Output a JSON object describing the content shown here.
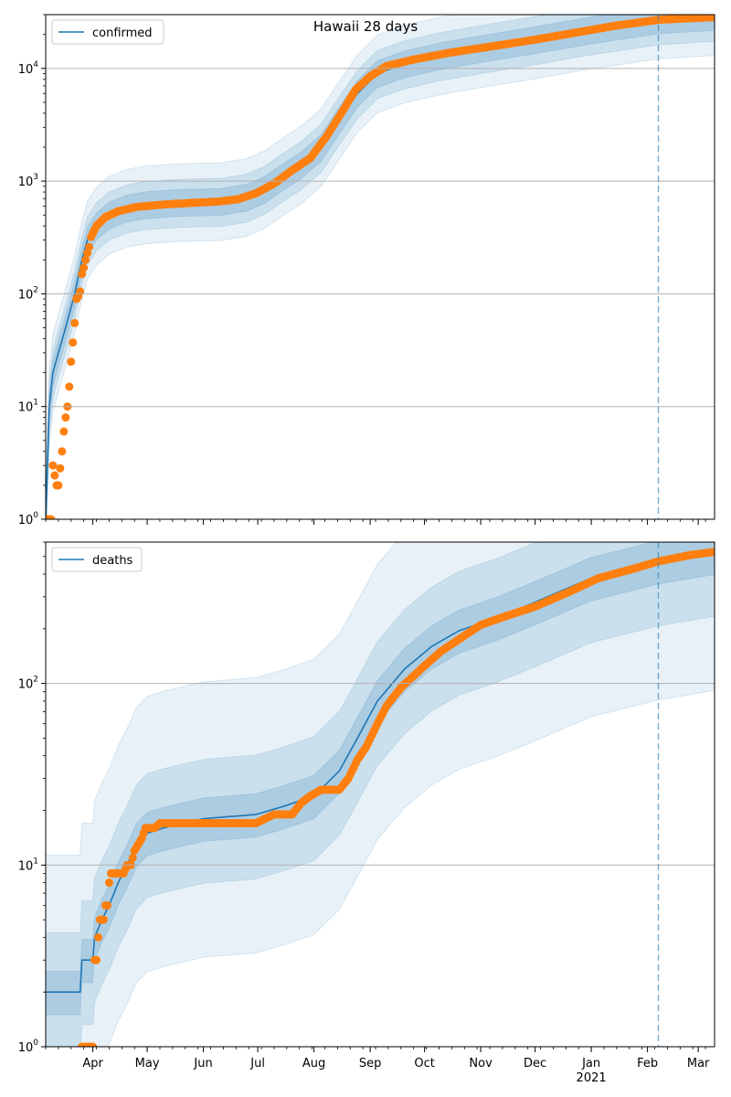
{
  "title": "Hawaii 28 days",
  "chart_data": [
    {
      "type": "line",
      "name": "confirmed-panel",
      "yscale": "log",
      "ylim": [
        1,
        30000
      ],
      "xlim": [
        "2020-03-06",
        "2021-03-10"
      ],
      "y_ticks": [
        {
          "value": 1,
          "base": "10",
          "exp": "0"
        },
        {
          "value": 10,
          "base": "10",
          "exp": "1"
        },
        {
          "value": 100,
          "base": "10",
          "exp": "2"
        },
        {
          "value": 1000,
          "base": "10",
          "exp": "3"
        },
        {
          "value": 10000,
          "base": "10",
          "exp": "4"
        }
      ],
      "grid": "horizontal",
      "legend": {
        "position": "upper-left",
        "label": "confirmed"
      },
      "vline_date": "2021-02-07",
      "model_line": [
        [
          "2020-03-06",
          1
        ],
        [
          "2020-03-08",
          10
        ],
        [
          "2020-03-10",
          20
        ],
        [
          "2020-03-13",
          30
        ],
        [
          "2020-03-17",
          50
        ],
        [
          "2020-03-22",
          100
        ],
        [
          "2020-03-26",
          200
        ],
        [
          "2020-03-29",
          300
        ],
        [
          "2020-04-03",
          400
        ],
        [
          "2020-04-10",
          500
        ],
        [
          "2020-04-20",
          580
        ],
        [
          "2020-05-01",
          620
        ],
        [
          "2020-05-20",
          650
        ],
        [
          "2020-06-10",
          660
        ],
        [
          "2020-06-25",
          720
        ],
        [
          "2020-07-05",
          850
        ],
        [
          "2020-07-15",
          1100
        ],
        [
          "2020-07-25",
          1400
        ],
        [
          "2020-08-05",
          2000
        ],
        [
          "2020-08-15",
          3500
        ],
        [
          "2020-08-25",
          6000
        ],
        [
          "2020-09-05",
          9000
        ],
        [
          "2020-09-20",
          11000
        ],
        [
          "2020-10-10",
          13000
        ],
        [
          "2020-11-01",
          15000
        ],
        [
          "2020-12-01",
          18000
        ],
        [
          "2021-01-01",
          22000
        ],
        [
          "2021-02-07",
          27000
        ],
        [
          "2021-03-10",
          29000
        ]
      ],
      "observed": [
        [
          "2020-03-06",
          1
        ],
        [
          "2020-03-09",
          1
        ],
        [
          "2020-03-10",
          3
        ],
        [
          "2020-03-12",
          2
        ],
        [
          "2020-03-13",
          2
        ],
        [
          "2020-03-15",
          4
        ],
        [
          "2020-03-16",
          6
        ],
        [
          "2020-03-17",
          8
        ],
        [
          "2020-03-18",
          10
        ],
        [
          "2020-03-19",
          15
        ],
        [
          "2020-03-20",
          25
        ],
        [
          "2020-03-21",
          37
        ],
        [
          "2020-03-22",
          55
        ],
        [
          "2020-03-23",
          90
        ],
        [
          "2020-03-24",
          95
        ],
        [
          "2020-03-25",
          105
        ],
        [
          "2020-03-26",
          150
        ],
        [
          "2020-03-27",
          170
        ],
        [
          "2020-03-28",
          200
        ],
        [
          "2020-03-29",
          230
        ],
        [
          "2020-03-30",
          260
        ],
        [
          "2020-03-31",
          320
        ],
        [
          "2020-04-03",
          400
        ],
        [
          "2020-04-08",
          480
        ],
        [
          "2020-04-15",
          540
        ],
        [
          "2020-04-25",
          590
        ],
        [
          "2020-05-10",
          620
        ],
        [
          "2020-05-25",
          640
        ],
        [
          "2020-06-10",
          660
        ],
        [
          "2020-06-20",
          690
        ],
        [
          "2020-06-30",
          780
        ],
        [
          "2020-07-10",
          950
        ],
        [
          "2020-07-20",
          1250
        ],
        [
          "2020-07-30",
          1600
        ],
        [
          "2020-08-08",
          2500
        ],
        [
          "2020-08-16",
          4000
        ],
        [
          "2020-08-24",
          6500
        ],
        [
          "2020-09-01",
          8500
        ],
        [
          "2020-09-10",
          10500
        ],
        [
          "2020-09-25",
          12000
        ],
        [
          "2020-10-15",
          13800
        ],
        [
          "2020-11-05",
          15500
        ],
        [
          "2020-12-01",
          18000
        ],
        [
          "2020-12-25",
          21000
        ],
        [
          "2021-01-15",
          24000
        ],
        [
          "2021-02-07",
          27000
        ],
        [
          "2021-03-10",
          28500
        ]
      ]
    },
    {
      "type": "line",
      "name": "deaths-panel",
      "yscale": "log",
      "ylim": [
        1,
        600
      ],
      "xlim": [
        "2020-03-06",
        "2021-03-10"
      ],
      "y_ticks": [
        {
          "value": 1,
          "base": "10",
          "exp": "0"
        },
        {
          "value": 10,
          "base": "10",
          "exp": "1"
        },
        {
          "value": 100,
          "base": "10",
          "exp": "2"
        }
      ],
      "grid": "horizontal",
      "legend": {
        "position": "upper-left",
        "label": "deaths"
      },
      "vline_date": "2021-02-07",
      "model_line": [
        [
          "2020-03-06",
          2
        ],
        [
          "2020-03-25",
          2
        ],
        [
          "2020-03-26",
          3
        ],
        [
          "2020-04-01",
          3
        ],
        [
          "2020-04-02",
          4
        ],
        [
          "2020-04-06",
          5
        ],
        [
          "2020-04-10",
          6
        ],
        [
          "2020-04-15",
          8
        ],
        [
          "2020-04-20",
          10
        ],
        [
          "2020-04-25",
          13
        ],
        [
          "2020-05-01",
          15
        ],
        [
          "2020-05-10",
          16
        ],
        [
          "2020-06-01",
          18
        ],
        [
          "2020-06-30",
          19
        ],
        [
          "2020-07-15",
          21
        ],
        [
          "2020-08-01",
          24
        ],
        [
          "2020-08-15",
          33
        ],
        [
          "2020-08-25",
          50
        ],
        [
          "2020-09-05",
          80
        ],
        [
          "2020-09-20",
          120
        ],
        [
          "2020-10-05",
          160
        ],
        [
          "2020-10-20",
          195
        ],
        [
          "2020-11-10",
          230
        ],
        [
          "2020-12-01",
          280
        ],
        [
          "2021-01-01",
          380
        ],
        [
          "2021-02-07",
          470
        ],
        [
          "2021-03-10",
          530
        ]
      ],
      "observed": [
        [
          "2020-03-26",
          1
        ],
        [
          "2020-03-31",
          1
        ],
        [
          "2020-04-01",
          1
        ],
        [
          "2020-04-02",
          3
        ],
        [
          "2020-04-03",
          3
        ],
        [
          "2020-04-04",
          4
        ],
        [
          "2020-04-05",
          5
        ],
        [
          "2020-04-06",
          5
        ],
        [
          "2020-04-07",
          5
        ],
        [
          "2020-04-08",
          6
        ],
        [
          "2020-04-09",
          6
        ],
        [
          "2020-04-10",
          8
        ],
        [
          "2020-04-11",
          9
        ],
        [
          "2020-04-14",
          9
        ],
        [
          "2020-04-18",
          9
        ],
        [
          "2020-04-20",
          10
        ],
        [
          "2020-04-22",
          10
        ],
        [
          "2020-04-24",
          12
        ],
        [
          "2020-04-26",
          13
        ],
        [
          "2020-04-28",
          14
        ],
        [
          "2020-04-30",
          16
        ],
        [
          "2020-05-05",
          16
        ],
        [
          "2020-05-08",
          17
        ],
        [
          "2020-05-20",
          17
        ],
        [
          "2020-06-10",
          17
        ],
        [
          "2020-06-30",
          17
        ],
        [
          "2020-07-05",
          18
        ],
        [
          "2020-07-10",
          19
        ],
        [
          "2020-07-20",
          19
        ],
        [
          "2020-07-25",
          22
        ],
        [
          "2020-07-30",
          24
        ],
        [
          "2020-08-05",
          26
        ],
        [
          "2020-08-15",
          26
        ],
        [
          "2020-08-20",
          30
        ],
        [
          "2020-08-25",
          38
        ],
        [
          "2020-08-30",
          45
        ],
        [
          "2020-09-05",
          60
        ],
        [
          "2020-09-10",
          75
        ],
        [
          "2020-09-18",
          95
        ],
        [
          "2020-09-25",
          110
        ],
        [
          "2020-10-01",
          125
        ],
        [
          "2020-10-10",
          150
        ],
        [
          "2020-10-20",
          175
        ],
        [
          "2020-11-01",
          210
        ],
        [
          "2020-11-15",
          235
        ],
        [
          "2020-12-01",
          265
        ],
        [
          "2020-12-20",
          320
        ],
        [
          "2021-01-05",
          380
        ],
        [
          "2021-01-25",
          430
        ],
        [
          "2021-02-07",
          470
        ],
        [
          "2021-02-25",
          510
        ],
        [
          "2021-03-10",
          530
        ]
      ]
    }
  ],
  "x_month_labels": [
    {
      "date": "2020-04-01",
      "label": "Apr"
    },
    {
      "date": "2020-05-01",
      "label": "May"
    },
    {
      "date": "2020-06-01",
      "label": "Jun"
    },
    {
      "date": "2020-07-01",
      "label": "Jul"
    },
    {
      "date": "2020-08-01",
      "label": "Aug"
    },
    {
      "date": "2020-09-01",
      "label": "Sep"
    },
    {
      "date": "2020-10-01",
      "label": "Oct"
    },
    {
      "date": "2020-11-01",
      "label": "Nov"
    },
    {
      "date": "2020-12-01",
      "label": "Dec"
    },
    {
      "date": "2021-01-01",
      "label": "Jan"
    },
    {
      "date": "2021-02-01",
      "label": "Feb"
    },
    {
      "date": "2021-03-01",
      "label": "Mar"
    }
  ],
  "year_label": "2021",
  "colors": {
    "model": "#1f77b4",
    "observed": "#ff7f0e",
    "band": "#1f77b4",
    "grid": "#b0b0b0",
    "vline": "#1f77b4"
  }
}
